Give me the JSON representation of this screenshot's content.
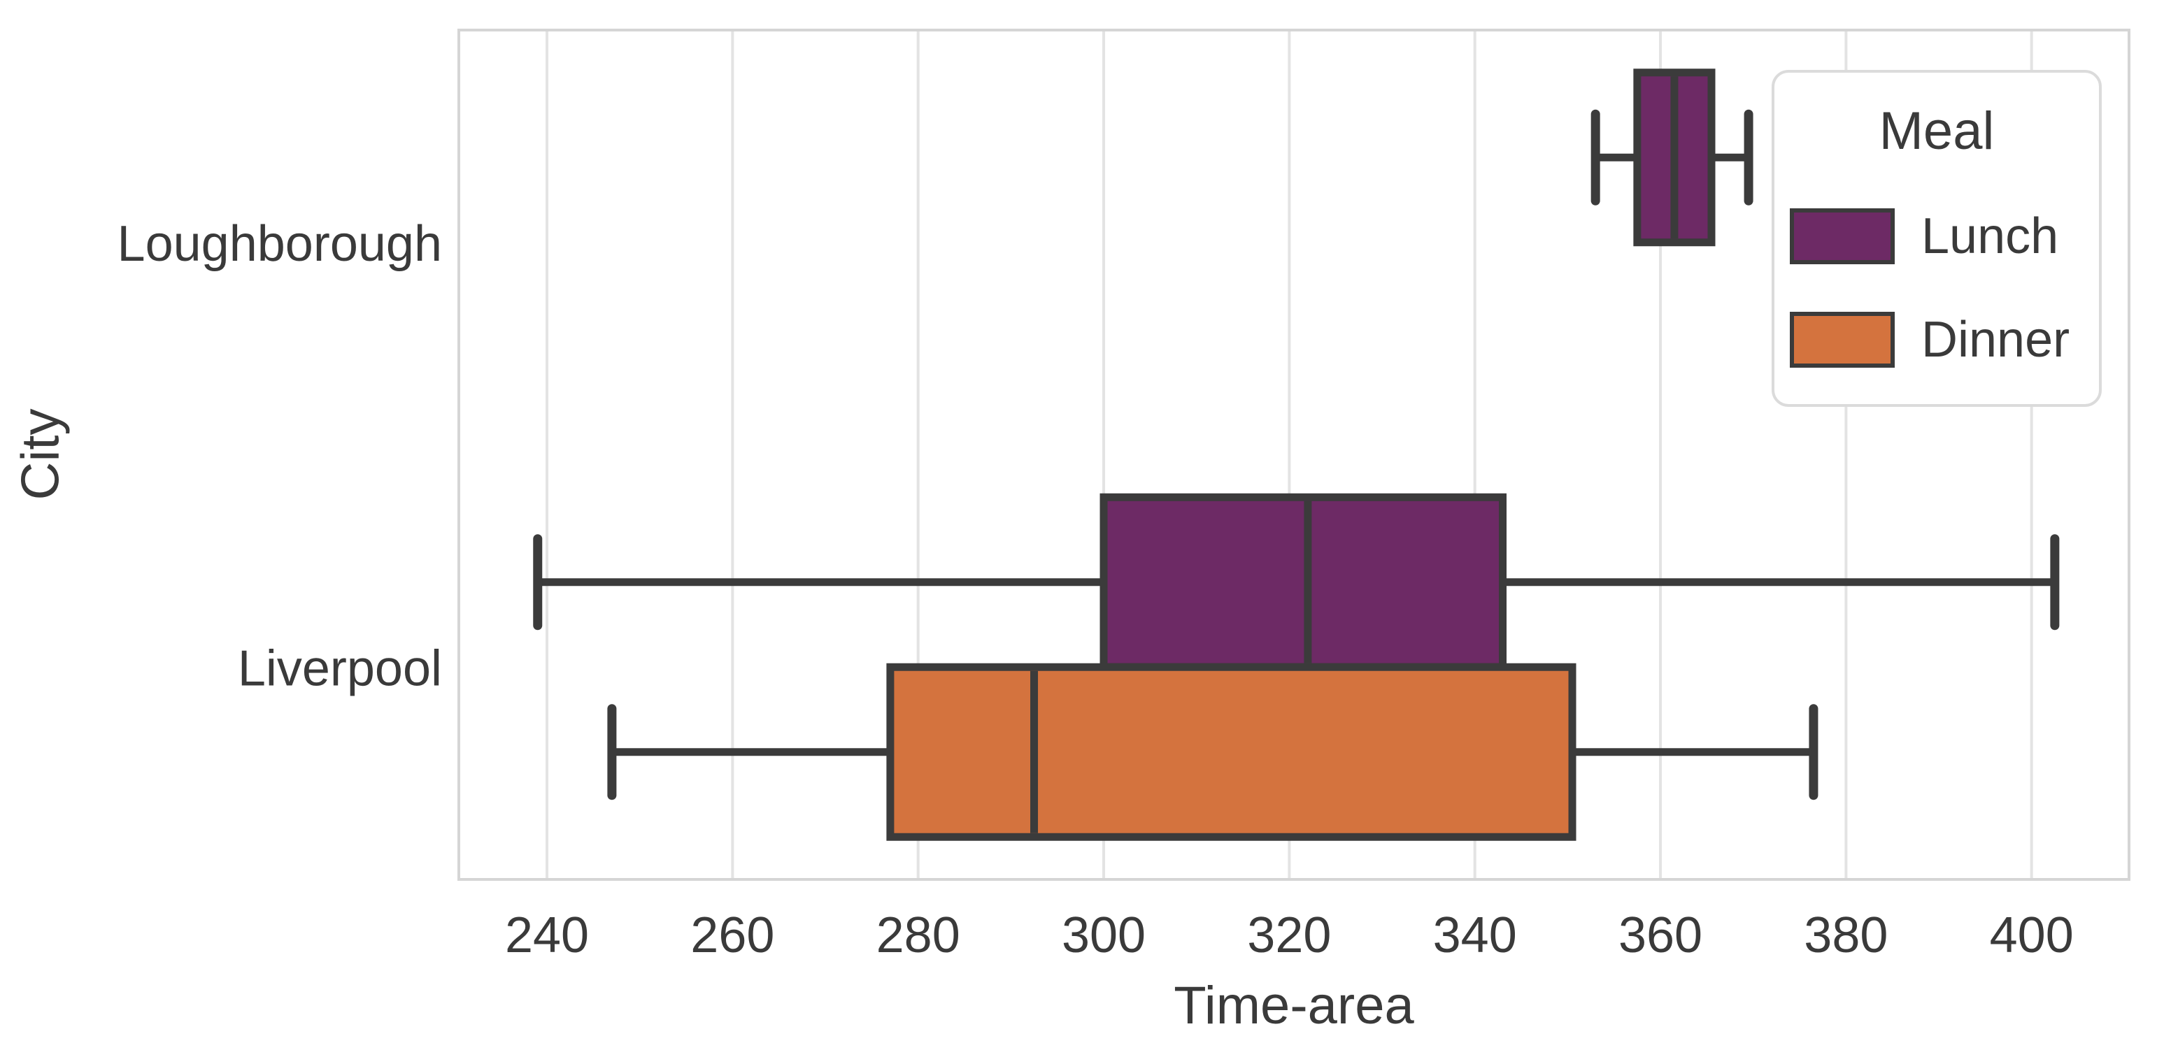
{
  "figure": {
    "background": "#ffffff"
  },
  "chart_data": {
    "type": "boxplot",
    "orientation": "horizontal",
    "xlabel": "Time-area",
    "ylabel": "City",
    "categories": [
      "Loughborough",
      "Liverpool"
    ],
    "xticks": [
      240,
      260,
      280,
      300,
      320,
      340,
      360,
      380,
      400
    ],
    "xlim": [
      230.5,
      410.5
    ],
    "grid": "vertical gridlines at every x tick, light gray, on white background",
    "legend": {
      "title": "Meal",
      "position": "upper-right",
      "entries": [
        {
          "label": "Lunch",
          "color": "#6D2A65"
        },
        {
          "label": "Dinner",
          "color": "#D4733E"
        }
      ]
    },
    "series": [
      {
        "name": "Lunch",
        "color": "#6D2A65",
        "boxes": [
          {
            "category": "Loughborough",
            "whisker_low": 353,
            "q1": 357.5,
            "median": 361.5,
            "q3": 365.5,
            "whisker_high": 369.5
          },
          {
            "category": "Liverpool",
            "whisker_low": 239,
            "q1": 300,
            "median": 322,
            "q3": 343,
            "whisker_high": 402.5
          }
        ]
      },
      {
        "name": "Dinner",
        "color": "#D4733E",
        "boxes": [
          {
            "category": "Liverpool",
            "whisker_low": 247,
            "q1": 277,
            "median": 292.5,
            "q3": 350.5,
            "whisker_high": 376.5
          }
        ]
      }
    ],
    "style": {
      "box_edge_color": "#3B3B3B",
      "median_color": "#3B3B3B",
      "whisker_color": "#3B3B3B",
      "grid_color": "#E3E3E3",
      "spine_color": "#D5D5D5",
      "text_color": "#3A3A3A"
    }
  }
}
